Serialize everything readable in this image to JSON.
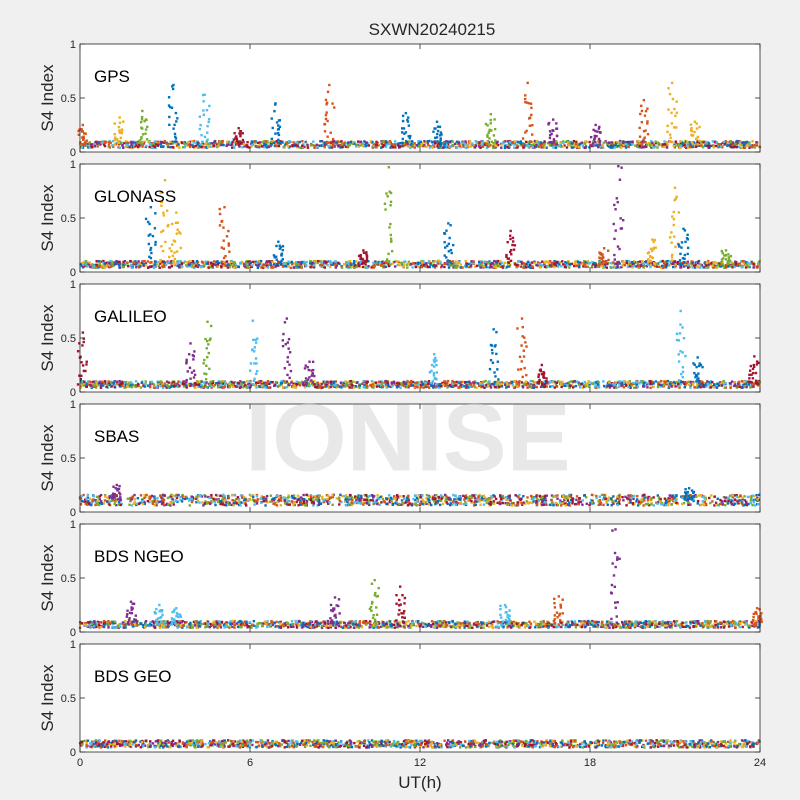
{
  "chart_data": {
    "type": "scatter",
    "title": "SXWN20240215",
    "xlabel": "UT(h)",
    "ylabel": "S4 Index",
    "xlim": [
      0,
      24
    ],
    "ylim": [
      0,
      1
    ],
    "xticks": [
      "0",
      "6",
      "12",
      "18",
      "24"
    ],
    "yticks": [
      "0",
      "0.5",
      "1"
    ],
    "watermark": "IONISE",
    "series_colors": [
      "#0072bd",
      "#d95319",
      "#edb120",
      "#7e2f8e",
      "#77ac30",
      "#4dbeee",
      "#a2142f"
    ],
    "panels": [
      {
        "name": "GPS",
        "background_level": 0.07,
        "spikes": [
          {
            "x": 0.1,
            "peak": 0.25,
            "color": "#d95319"
          },
          {
            "x": 1.4,
            "peak": 0.32,
            "color": "#edb120"
          },
          {
            "x": 2.2,
            "peak": 0.38,
            "color": "#77ac30"
          },
          {
            "x": 3.3,
            "peak": 0.62,
            "color": "#0072bd"
          },
          {
            "x": 4.4,
            "peak": 0.53,
            "color": "#4dbeee"
          },
          {
            "x": 5.6,
            "peak": 0.22,
            "color": "#a2142f"
          },
          {
            "x": 6.9,
            "peak": 0.45,
            "color": "#0072bd"
          },
          {
            "x": 8.8,
            "peak": 0.62,
            "color": "#d95319"
          },
          {
            "x": 11.5,
            "peak": 0.36,
            "color": "#0072bd"
          },
          {
            "x": 12.6,
            "peak": 0.28,
            "color": "#0072bd"
          },
          {
            "x": 14.5,
            "peak": 0.35,
            "color": "#77ac30"
          },
          {
            "x": 15.8,
            "peak": 0.64,
            "color": "#d95319"
          },
          {
            "x": 16.7,
            "peak": 0.3,
            "color": "#7e2f8e"
          },
          {
            "x": 18.2,
            "peak": 0.25,
            "color": "#7e2f8e"
          },
          {
            "x": 19.9,
            "peak": 0.48,
            "color": "#d95319"
          },
          {
            "x": 20.9,
            "peak": 0.64,
            "color": "#edb120"
          },
          {
            "x": 21.7,
            "peak": 0.28,
            "color": "#edb120"
          }
        ]
      },
      {
        "name": "GLONASS",
        "background_level": 0.07,
        "spikes": [
          {
            "x": 2.5,
            "peak": 0.6,
            "color": "#0072bd"
          },
          {
            "x": 3.0,
            "peak": 0.85,
            "color": "#edb120"
          },
          {
            "x": 3.4,
            "peak": 0.55,
            "color": "#edb120"
          },
          {
            "x": 5.1,
            "peak": 0.6,
            "color": "#d95319"
          },
          {
            "x": 7.0,
            "peak": 0.28,
            "color": "#0072bd"
          },
          {
            "x": 10.0,
            "peak": 0.2,
            "color": "#a2142f"
          },
          {
            "x": 10.9,
            "peak": 0.97,
            "color": "#77ac30"
          },
          {
            "x": 13.0,
            "peak": 0.45,
            "color": "#0072bd"
          },
          {
            "x": 15.2,
            "peak": 0.38,
            "color": "#a2142f"
          },
          {
            "x": 18.5,
            "peak": 0.22,
            "color": "#d95319"
          },
          {
            "x": 19.0,
            "peak": 0.98,
            "color": "#7e2f8e"
          },
          {
            "x": 20.2,
            "peak": 0.3,
            "color": "#edb120"
          },
          {
            "x": 21.0,
            "peak": 0.78,
            "color": "#edb120"
          },
          {
            "x": 21.3,
            "peak": 0.4,
            "color": "#0072bd"
          },
          {
            "x": 22.8,
            "peak": 0.2,
            "color": "#77ac30"
          }
        ]
      },
      {
        "name": "GALILEO",
        "background_level": 0.07,
        "spikes": [
          {
            "x": 0.1,
            "peak": 0.55,
            "color": "#a2142f"
          },
          {
            "x": 3.9,
            "peak": 0.45,
            "color": "#7e2f8e"
          },
          {
            "x": 4.5,
            "peak": 0.65,
            "color": "#77ac30"
          },
          {
            "x": 6.1,
            "peak": 0.66,
            "color": "#4dbeee"
          },
          {
            "x": 7.3,
            "peak": 0.68,
            "color": "#7e2f8e"
          },
          {
            "x": 8.1,
            "peak": 0.28,
            "color": "#7e2f8e"
          },
          {
            "x": 12.5,
            "peak": 0.35,
            "color": "#4dbeee"
          },
          {
            "x": 14.6,
            "peak": 0.58,
            "color": "#0072bd"
          },
          {
            "x": 15.6,
            "peak": 0.68,
            "color": "#d95319"
          },
          {
            "x": 16.3,
            "peak": 0.25,
            "color": "#a2142f"
          },
          {
            "x": 21.2,
            "peak": 0.75,
            "color": "#4dbeee"
          },
          {
            "x": 21.8,
            "peak": 0.32,
            "color": "#0072bd"
          },
          {
            "x": 23.8,
            "peak": 0.33,
            "color": "#a2142f"
          }
        ]
      },
      {
        "name": "SBAS",
        "background_level": 0.11,
        "spikes": [
          {
            "x": 1.3,
            "peak": 0.25,
            "color": "#7e2f8e"
          },
          {
            "x": 21.5,
            "peak": 0.22,
            "color": "#0072bd"
          }
        ]
      },
      {
        "name": "BDS NGEO",
        "background_level": 0.07,
        "spikes": [
          {
            "x": 1.8,
            "peak": 0.28,
            "color": "#7e2f8e"
          },
          {
            "x": 2.8,
            "peak": 0.25,
            "color": "#4dbeee"
          },
          {
            "x": 3.4,
            "peak": 0.22,
            "color": "#4dbeee"
          },
          {
            "x": 9.0,
            "peak": 0.32,
            "color": "#7e2f8e"
          },
          {
            "x": 10.4,
            "peak": 0.48,
            "color": "#77ac30"
          },
          {
            "x": 11.3,
            "peak": 0.42,
            "color": "#a2142f"
          },
          {
            "x": 15.0,
            "peak": 0.25,
            "color": "#4dbeee"
          },
          {
            "x": 16.9,
            "peak": 0.33,
            "color": "#d95319"
          },
          {
            "x": 18.9,
            "peak": 0.95,
            "color": "#7e2f8e"
          },
          {
            "x": 23.9,
            "peak": 0.22,
            "color": "#d95319"
          }
        ]
      },
      {
        "name": "BDS GEO",
        "background_level": 0.075,
        "spikes": []
      }
    ]
  }
}
